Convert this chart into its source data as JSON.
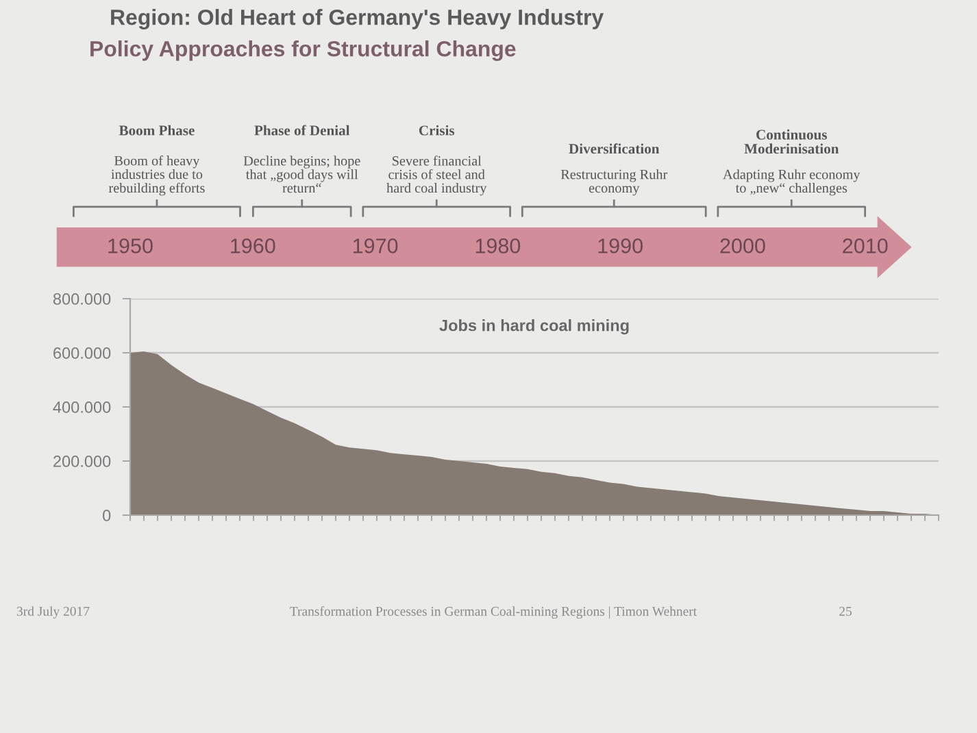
{
  "chart_data": {
    "type": "area",
    "title": "Region: Old Heart of Germany's Heavy Industry",
    "subtitle": "Policy Approaches for Structural Change",
    "categories": [
      null,
      null,
      null,
      null,
      null,
      null,
      null,
      null,
      null,
      null,
      null,
      null,
      null,
      null,
      null,
      null,
      null,
      null,
      null,
      null,
      null,
      null,
      null,
      null,
      null,
      null,
      null,
      null,
      null,
      null,
      null,
      null,
      null,
      null,
      null,
      null,
      null,
      null,
      null,
      null,
      null,
      null,
      null,
      null,
      null,
      null,
      null,
      null,
      null,
      null,
      null,
      null,
      null,
      null,
      null,
      null,
      null,
      null,
      null,
      null
    ],
    "series": [
      {
        "color": "#857b73",
        "values": [
          600000,
          605000,
          595000,
          555000,
          520000,
          490000,
          470000,
          450000,
          430000,
          410000,
          385000,
          360000,
          340000,
          315000,
          290000,
          260000,
          250000,
          245000,
          240000,
          230000,
          225000,
          220000,
          215000,
          205000,
          200000,
          195000,
          190000,
          180000,
          175000,
          170000,
          160000,
          155000,
          145000,
          140000,
          130000,
          120000,
          115000,
          105000,
          100000,
          95000,
          90000,
          85000,
          80000,
          70000,
          65000,
          60000,
          55000,
          50000,
          45000,
          40000,
          35000,
          30000,
          25000,
          20000,
          15000,
          15000,
          10000,
          5000,
          5000,
          0
        ]
      }
    ],
    "ylim": [
      0,
      800000
    ],
    "yticks": [
      0,
      {
        "value": 200000,
        "label": "200.000"
      },
      {
        "value": 400000,
        "label": "400.000"
      },
      {
        "value": 600000,
        "label": "600.000"
      },
      {
        "value": 800000,
        "label": "800.000"
      }
    ],
    "grid": "y",
    "x2lim": [
      1950,
      2016
    ],
    "x2ticks": [
      1950,
      1960,
      1970,
      1980,
      1990,
      2000,
      2010
    ],
    "annotations": [
      "Jobs in hard coal mining",
      "Boom Phase\n\nBoom of heavy\nindustries due to\nrebuilding efforts",
      "Phase of Denial\n\nDecline begins; hope\nthat „good days will\nreturn“",
      "Crisis\n\nSevere financial\ncrisis of steel and\nhard coal industry",
      "Diversification\n\nRestructuring Ruhr\neconomy",
      "Continuous\nModerinisation\n\nAdapting Ruhr economy\nto „new“ challenges",
      "3rd July 2017",
      "Transformation Processes in German Coal-mining Regions | Timon Wehnert",
      "25"
    ]
  }
}
